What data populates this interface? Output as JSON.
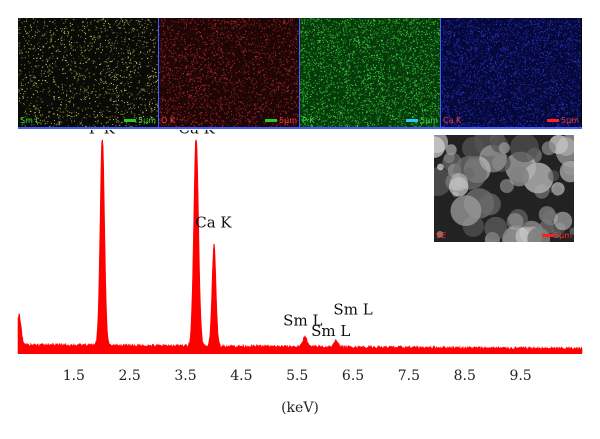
{
  "maps": [
    {
      "label": "Sm L",
      "scale": "5μm",
      "label_color": "#33dd33",
      "bar_color": "#22cc22",
      "base": "#0a0a06",
      "dots": "#d8d870",
      "density": 1400
    },
    {
      "label": "O K",
      "scale": "5μm",
      "label_color": "#ff4040",
      "bar_color": "#22cc22",
      "base": "#1e0606",
      "dots": "#c83030",
      "density": 2200
    },
    {
      "label": "P K",
      "scale": "5μm",
      "label_color": "#44dd44",
      "bar_color": "#22ccff",
      "base": "#063a0a",
      "dots": "#44dd44",
      "density": 3200
    },
    {
      "label": "Ca K",
      "scale": "5μm",
      "label_color": "#ff3030",
      "bar_color": "#ff2020",
      "base": "#06083a",
      "dots": "#2c3cd0",
      "density": 3000
    }
  ],
  "sem": {
    "label": "SE",
    "scale": "5μm"
  },
  "chart_data": {
    "type": "area",
    "color": "#ff0000",
    "xlabel": "(keV)",
    "xlim": [
      0.5,
      10.6
    ],
    "ylim": [
      0,
      100
    ],
    "x_ticks": [
      1.5,
      2.5,
      3.5,
      4.5,
      5.5,
      6.5,
      7.5,
      8.5,
      9.5
    ],
    "x_tick_labels": [
      "1.5",
      "2.5",
      "3.5",
      "4.5",
      "5.5",
      "6.5",
      "7.5",
      "8.5",
      "9.5"
    ],
    "peaks": [
      {
        "x": 2.01,
        "y": 100,
        "width": 0.055
      },
      {
        "x": 3.69,
        "y": 100,
        "width": 0.06
      },
      {
        "x": 4.01,
        "y": 48,
        "width": 0.05
      },
      {
        "x": 0.52,
        "y": 14,
        "width": 0.05
      },
      {
        "x": 5.64,
        "y": 5,
        "width": 0.05
      },
      {
        "x": 6.2,
        "y": 3,
        "width": 0.05
      }
    ],
    "annotations": [
      {
        "text": "P K",
        "x": 2.0,
        "y": 103
      },
      {
        "text": "Ca K",
        "x": 3.7,
        "y": 103
      },
      {
        "text": "Ca K",
        "x": 4.0,
        "y": 59
      },
      {
        "text": "Sm L",
        "x": 5.6,
        "y": 13
      },
      {
        "text": "Sm L",
        "x": 6.5,
        "y": 18
      },
      {
        "text": "Sm L",
        "x": 6.1,
        "y": 8
      }
    ]
  }
}
